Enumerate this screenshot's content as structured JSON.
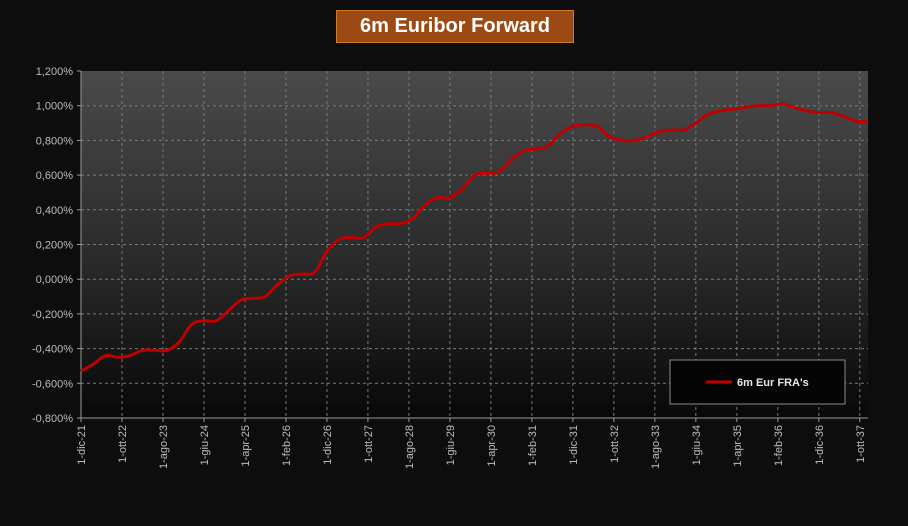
{
  "chart_data": {
    "type": "line",
    "title": "6m Euribor Forward",
    "xlabel": "",
    "ylabel": "",
    "ylim": [
      -0.8,
      1.2
    ],
    "yticks": [
      "1,200%",
      "1,000%",
      "0,800%",
      "0,600%",
      "0,400%",
      "0,200%",
      "0,000%",
      "-0,200%",
      "-0,400%",
      "-0,600%",
      "-0,800%"
    ],
    "x_tick_labels": [
      "1-dic-21",
      "1-ott-22",
      "1-ago-23",
      "1-giu-24",
      "1-apr-25",
      "1-feb-26",
      "1-dic-26",
      "1-ott-27",
      "1-ago-28",
      "1-giu-29",
      "1-apr-30",
      "1-feb-31",
      "1-dic-31",
      "1-ott-32",
      "1-ago-33",
      "1-giu-34",
      "1-apr-35",
      "1-feb-36",
      "1-dic-36",
      "1-ott-37"
    ],
    "grid": true,
    "legend_position": "bottom-right",
    "series": [
      {
        "name": "6m Eur FRA's",
        "color": "#c00000",
        "x": [
          "1-dic-21",
          "1-mar-22",
          "1-giu-22",
          "1-set-22",
          "1-dic-22",
          "1-mar-23",
          "1-giu-23",
          "1-set-23",
          "1-dic-23",
          "1-mar-24",
          "1-giu-24",
          "1-set-24",
          "1-dic-24",
          "1-mar-25",
          "1-giu-25",
          "1-set-25",
          "1-dic-25",
          "1-mar-26",
          "1-giu-26",
          "1-set-26",
          "1-dic-26",
          "1-mar-27",
          "1-giu-27",
          "1-set-27",
          "1-dic-27",
          "1-mar-28",
          "1-giu-28",
          "1-set-28",
          "1-dic-28",
          "1-mar-29",
          "1-giu-29",
          "1-set-29",
          "1-dic-29",
          "1-mar-30",
          "1-giu-30",
          "1-set-30",
          "1-dic-30",
          "1-mar-31",
          "1-giu-31",
          "1-set-31",
          "1-dic-31",
          "1-mar-32",
          "1-giu-32",
          "1-set-32",
          "1-dic-32",
          "1-mar-33",
          "1-giu-33",
          "1-set-33",
          "1-dic-33",
          "1-mar-34",
          "1-giu-34",
          "1-set-34",
          "1-dic-34",
          "1-mar-35",
          "1-giu-35",
          "1-set-35",
          "1-dic-35",
          "1-mar-36",
          "1-giu-36",
          "1-set-36",
          "1-dic-36",
          "1-mar-37",
          "1-giu-37",
          "1-set-37",
          "1-dic-37"
        ],
        "values": [
          -0.53,
          -0.49,
          -0.44,
          -0.45,
          -0.44,
          -0.41,
          -0.41,
          -0.41,
          -0.36,
          -0.26,
          -0.24,
          -0.24,
          -0.18,
          -0.12,
          -0.11,
          -0.1,
          -0.03,
          0.02,
          0.03,
          0.04,
          0.16,
          0.23,
          0.24,
          0.24,
          0.3,
          0.32,
          0.32,
          0.35,
          0.43,
          0.47,
          0.47,
          0.52,
          0.6,
          0.61,
          0.62,
          0.69,
          0.74,
          0.75,
          0.77,
          0.84,
          0.88,
          0.89,
          0.88,
          0.82,
          0.8,
          0.8,
          0.82,
          0.85,
          0.86,
          0.86,
          0.9,
          0.95,
          0.97,
          0.98,
          0.99,
          1.0,
          1.0,
          1.01,
          0.99,
          0.97,
          0.96,
          0.96,
          0.94,
          0.91,
          0.91
        ]
      }
    ]
  }
}
